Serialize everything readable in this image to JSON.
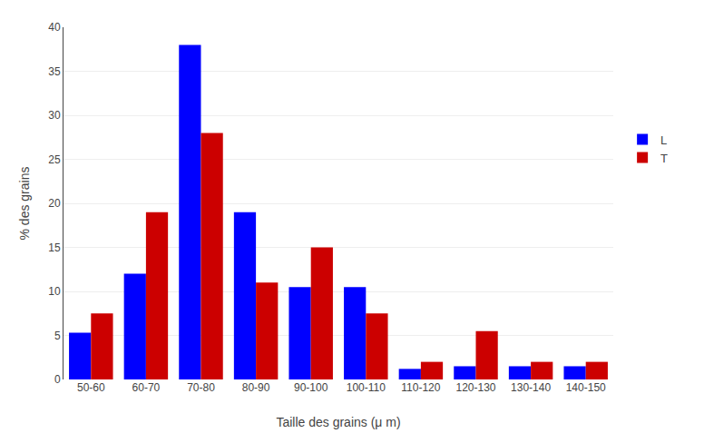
{
  "chart_data": {
    "type": "bar",
    "categories": [
      "50-60",
      "60-70",
      "70-80",
      "80-90",
      "90-100",
      "100-110",
      "110-120",
      "120-130",
      "130-140",
      "140-150"
    ],
    "series": [
      {
        "name": "L",
        "color": "#0000FF",
        "values": [
          5.3,
          12.0,
          38.0,
          19.0,
          10.5,
          10.5,
          1.2,
          1.5,
          1.5,
          1.5
        ]
      },
      {
        "name": "T",
        "color": "#CC0000",
        "values": [
          7.5,
          19.0,
          28.0,
          11.0,
          15.0,
          7.5,
          2.0,
          5.5,
          2.0,
          2.0
        ]
      }
    ],
    "xlabel": "Taille des grains (μ m)",
    "ylabel": "% des grains",
    "ylim": [
      0,
      40
    ],
    "yticks": [
      0,
      5,
      10,
      15,
      20,
      25,
      30,
      35,
      40
    ],
    "grid": true,
    "legend": "right"
  }
}
